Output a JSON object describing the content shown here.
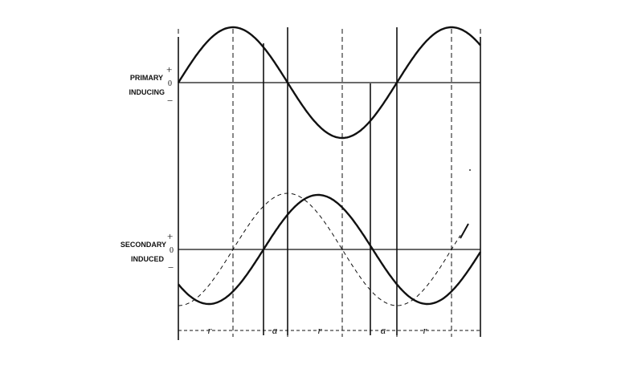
{
  "primary": {
    "label_line1": "PRIMARY",
    "label_line2": "INDUCING",
    "plus": "+",
    "zero": "0",
    "minus": "−"
  },
  "secondary": {
    "label_line1": "SECONDARY",
    "label_line2": "INDUCED",
    "plus": "+",
    "zero": "0",
    "minus": "−"
  },
  "segments": [
    "r",
    "a",
    "r",
    "a",
    "r"
  ],
  "colors": {
    "ink": "#111111",
    "background": "#ffffff"
  }
}
